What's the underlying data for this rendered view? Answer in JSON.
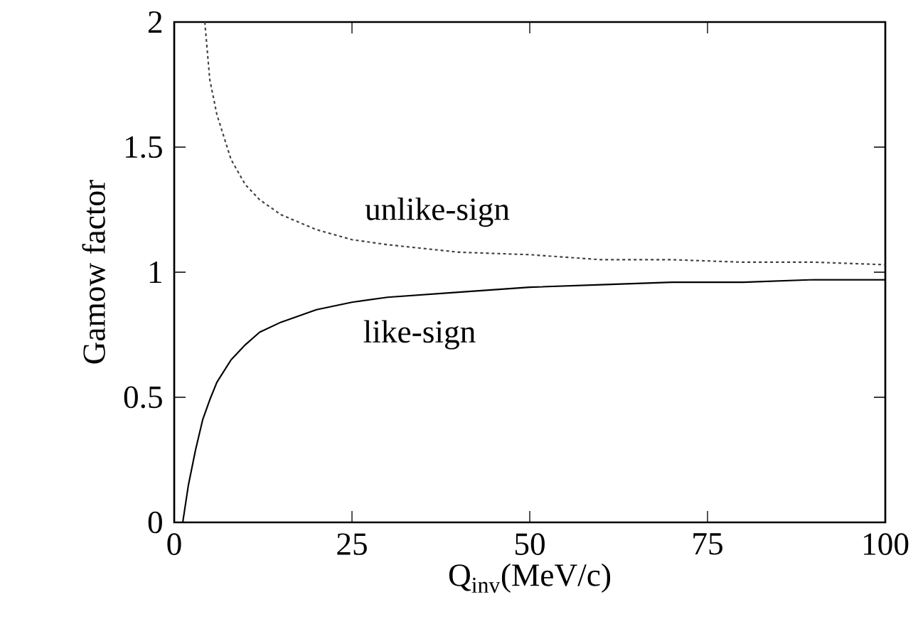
{
  "chart_data": {
    "type": "line",
    "xlabel": "Q$_{inv}$(MeV/c)",
    "ylabel": "Gamow factor",
    "xlim": [
      0,
      100
    ],
    "ylim": [
      0,
      2
    ],
    "xticks": [
      0,
      25,
      50,
      75,
      100
    ],
    "yticks": [
      0,
      0.5,
      1,
      1.5,
      2
    ],
    "grid": false,
    "marker": "none",
    "series": [
      {
        "color": "#404040",
        "line_style": "dashed",
        "x": [
          4.3,
          5,
          6,
          8,
          10,
          12,
          15,
          20,
          25,
          30,
          40,
          50,
          60,
          70,
          80,
          90,
          100
        ],
        "values": [
          2,
          1.77,
          1.63,
          1.45,
          1.35,
          1.29,
          1.23,
          1.17,
          1.13,
          1.11,
          1.08,
          1.07,
          1.05,
          1.05,
          1.04,
          1.04,
          1.03
        ]
      },
      {
        "color": "#000000",
        "line_style": "solid",
        "x": [
          1.2,
          2,
          3,
          4,
          5,
          6,
          8,
          10,
          12,
          15,
          20,
          25,
          30,
          40,
          50,
          60,
          70,
          80,
          90,
          100
        ],
        "values": [
          0,
          0.15,
          0.29,
          0.41,
          0.49,
          0.56,
          0.65,
          0.71,
          0.76,
          0.8,
          0.85,
          0.88,
          0.9,
          0.92,
          0.94,
          0.95,
          0.96,
          0.96,
          0.97,
          0.97
        ]
      }
    ],
    "annotations": [
      "unlike-sign",
      "like-sign"
    ]
  }
}
